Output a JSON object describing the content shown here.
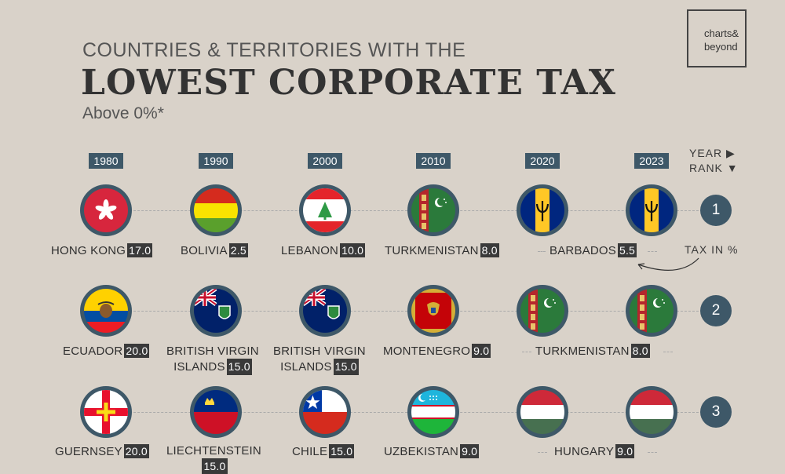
{
  "header": {
    "subtitle": "COUNTRIES & TERRITORIES WITH THE",
    "title": "LOWEST CORPORATE TAX",
    "note": "Above 0%*",
    "logo_line1": "charts&",
    "logo_line2": "beyond"
  },
  "years": [
    "1980",
    "1990",
    "2000",
    "2010",
    "2020",
    "2023"
  ],
  "legend": {
    "year": "YEAR ▶",
    "rank": "RANK ▼",
    "tax": "TAX IN %"
  },
  "ranks": [
    "1",
    "2",
    "3"
  ],
  "rows": [
    [
      {
        "country": "HONG KONG",
        "value": "17.0",
        "flag": "hong-kong-flag-icon"
      },
      {
        "country": "BOLIVIA",
        "value": "2.5",
        "flag": "bolivia-flag-icon"
      },
      {
        "country": "LEBANON",
        "value": "10.0",
        "flag": "lebanon-flag-icon"
      },
      {
        "country": "TURKMENISTAN",
        "value": "8.0",
        "flag": "turkmenistan-flag-icon"
      },
      {
        "country": "BARBADOS",
        "value": "5.5",
        "flag": "barbados-flag-icon"
      },
      {
        "country": "",
        "value": "",
        "flag": "barbados-flag-icon"
      }
    ],
    [
      {
        "country": "ECUADOR",
        "value": "20.0",
        "flag": "ecuador-flag-icon"
      },
      {
        "country_line1": "BRITISH VIRGIN",
        "country": "ISLANDS",
        "value": "15.0",
        "flag": "bvi-flag-icon"
      },
      {
        "country_line1": "BRITISH VIRGIN",
        "country": "ISLANDS",
        "value": "15.0",
        "flag": "bvi-flag-icon"
      },
      {
        "country": "MONTENEGRO",
        "value": "9.0",
        "flag": "montenegro-flag-icon"
      },
      {
        "country": "TURKMENISTAN",
        "value": "8.0",
        "flag": "turkmenistan-flag-icon"
      },
      {
        "country": "",
        "value": "",
        "flag": "turkmenistan-flag-icon"
      }
    ],
    [
      {
        "country": "GUERNSEY",
        "value": "20.0",
        "flag": "guernsey-flag-icon"
      },
      {
        "country": "LIECHTENSTEIN",
        "value": "15.0",
        "flag": "liechtenstein-flag-icon"
      },
      {
        "country": "CHILE",
        "value": "15.0",
        "flag": "chile-flag-icon"
      },
      {
        "country": "UZBEKISTAN",
        "value": "9.0",
        "flag": "uzbekistan-flag-icon"
      },
      {
        "country": "HUNGARY",
        "value": "9.0",
        "flag": "hungary-flag-icon"
      },
      {
        "country": "",
        "value": "",
        "flag": "hungary-flag-icon"
      }
    ]
  ],
  "colors": {
    "background": "#d9d2c9",
    "accent": "#3e5868",
    "value_box": "#3a3a3a"
  }
}
